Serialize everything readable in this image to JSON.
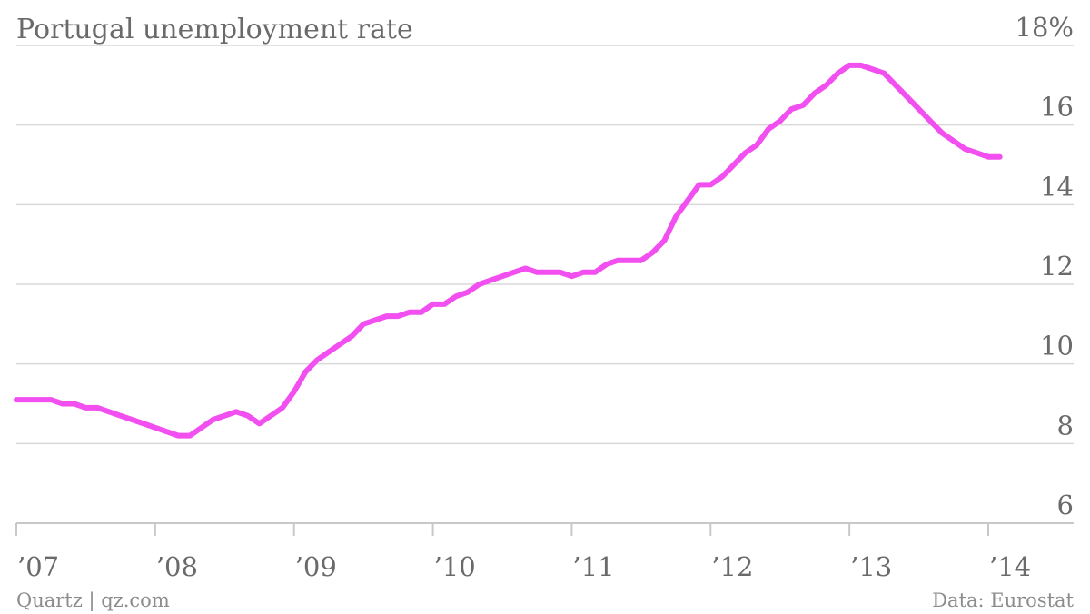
{
  "chart_data": {
    "type": "line",
    "title": "Portugal unemployment rate",
    "source_left": "Quartz | qz.com",
    "source_right": "Data: Eurostat",
    "color": "#f24ff0",
    "grid": true,
    "ylim": [
      6,
      18
    ],
    "y_ticks": [
      6,
      8,
      10,
      12,
      14,
      16,
      18
    ],
    "y_tick_labels": [
      "6",
      "8",
      "10",
      "12",
      "14",
      "16",
      "18%"
    ],
    "x_ticks": [
      2007,
      2008,
      2009,
      2010,
      2011,
      2012,
      2013,
      2014
    ],
    "x_tick_labels": [
      "’07",
      "’08",
      "’09",
      "’10",
      "’11",
      "’12",
      "’13",
      "’14"
    ],
    "series": [
      {
        "x": [
          2007.0,
          2007.083,
          2007.167,
          2007.25,
          2007.333,
          2007.417,
          2007.5,
          2007.583,
          2007.667,
          2007.75,
          2007.833,
          2007.917,
          2008.0,
          2008.083,
          2008.167,
          2008.25,
          2008.333,
          2008.417,
          2008.5,
          2008.583,
          2008.667,
          2008.75,
          2008.833,
          2008.917,
          2009.0,
          2009.083,
          2009.167,
          2009.25,
          2009.333,
          2009.417,
          2009.5,
          2009.583,
          2009.667,
          2009.75,
          2009.833,
          2009.917,
          2010.0,
          2010.083,
          2010.167,
          2010.25,
          2010.333,
          2010.417,
          2010.5,
          2010.583,
          2010.667,
          2010.75,
          2010.833,
          2010.917,
          2011.0,
          2011.083,
          2011.167,
          2011.25,
          2011.333,
          2011.417,
          2011.5,
          2011.583,
          2011.667,
          2011.75,
          2011.833,
          2011.917,
          2012.0,
          2012.083,
          2012.167,
          2012.25,
          2012.333,
          2012.417,
          2012.5,
          2012.583,
          2012.667,
          2012.75,
          2012.833,
          2012.917,
          2013.0,
          2013.083,
          2013.167,
          2013.25,
          2013.333,
          2013.417,
          2013.5,
          2013.583,
          2013.667,
          2013.75,
          2013.833,
          2013.917,
          2014.0,
          2014.083
        ],
        "y": [
          9.1,
          9.1,
          9.1,
          9.1,
          9.0,
          9.0,
          8.9,
          8.9,
          8.8,
          8.7,
          8.6,
          8.5,
          8.4,
          8.3,
          8.2,
          8.2,
          8.4,
          8.6,
          8.7,
          8.8,
          8.7,
          8.5,
          8.7,
          8.9,
          9.3,
          9.8,
          10.1,
          10.3,
          10.5,
          10.7,
          11.0,
          11.1,
          11.2,
          11.2,
          11.3,
          11.3,
          11.5,
          11.5,
          11.7,
          11.8,
          12.0,
          12.1,
          12.2,
          12.3,
          12.4,
          12.3,
          12.3,
          12.3,
          12.2,
          12.3,
          12.3,
          12.5,
          12.6,
          12.6,
          12.6,
          12.8,
          13.1,
          13.7,
          14.1,
          14.5,
          14.5,
          14.7,
          15.0,
          15.3,
          15.5,
          15.9,
          16.1,
          16.4,
          16.5,
          16.8,
          17.0,
          17.3,
          17.5,
          17.5,
          17.4,
          17.3,
          17.0,
          16.7,
          16.4,
          16.1,
          15.8,
          15.6,
          15.4,
          15.3,
          15.2,
          15.2
        ]
      }
    ]
  }
}
